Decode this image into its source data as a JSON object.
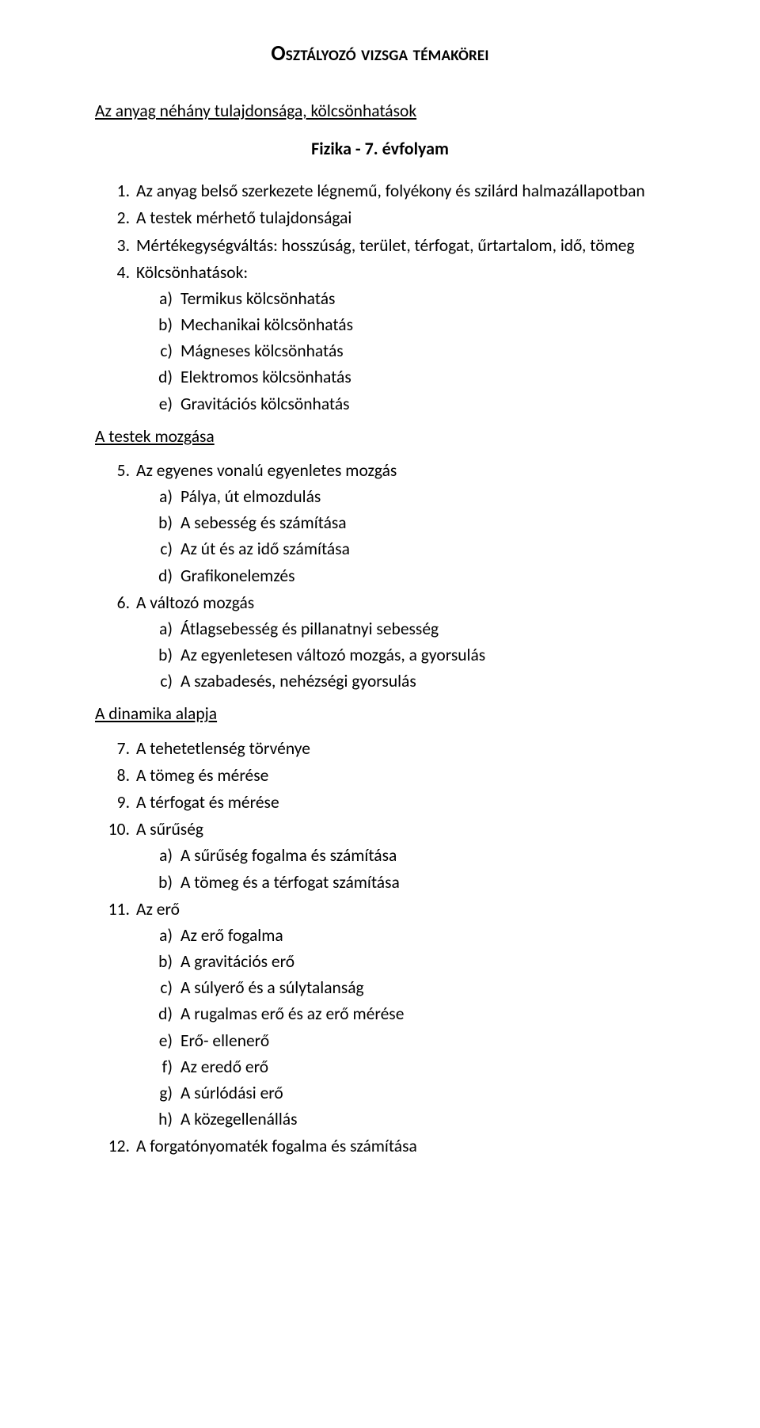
{
  "title": "Osztályozó vizsga témakörei",
  "subtitle": "Fizika - 7. évfolyam",
  "sections": [
    {
      "heading": "Az anyag néhány tulajdonsága, kölcsönhatások",
      "items": [
        {
          "num": "1.",
          "text": "Az anyag belső szerkezete légnemű, folyékony és szilárd halmazállapotban"
        },
        {
          "num": "2.",
          "text": "A testek mérhető tulajdonságai"
        },
        {
          "num": "3.",
          "text": "Mértékegységváltás: hosszúság, terület, térfogat, űrtartalom, idő, tömeg"
        },
        {
          "num": "4.",
          "text": "Kölcsönhatások:",
          "sub": [
            {
              "lett": "a)",
              "text": "Termikus kölcsönhatás"
            },
            {
              "lett": "b)",
              "text": "Mechanikai kölcsönhatás"
            },
            {
              "lett": "c)",
              "text": "Mágneses kölcsönhatás"
            },
            {
              "lett": "d)",
              "text": "Elektromos kölcsönhatás"
            },
            {
              "lett": "e)",
              "text": "Gravitációs kölcsönhatás"
            }
          ]
        }
      ]
    },
    {
      "heading": "A testek mozgása",
      "items": [
        {
          "num": "5.",
          "text": "Az egyenes vonalú egyenletes mozgás",
          "sub": [
            {
              "lett": "a)",
              "text": "Pálya, út elmozdulás"
            },
            {
              "lett": "b)",
              "text": "A sebesség és számítása"
            },
            {
              "lett": "c)",
              "text": "Az út és az idő számítása"
            },
            {
              "lett": "d)",
              "text": "Grafikonelemzés"
            }
          ]
        },
        {
          "num": "6.",
          "text": "A változó mozgás",
          "sub": [
            {
              "lett": "a)",
              "text": "Átlagsebesség és pillanatnyi sebesség"
            },
            {
              "lett": "b)",
              "text": "Az egyenletesen változó mozgás, a gyorsulás"
            },
            {
              "lett": "c)",
              "text": "A szabadesés, nehézségi gyorsulás"
            }
          ]
        }
      ]
    },
    {
      "heading": "A dinamika alapja",
      "items": [
        {
          "num": "7.",
          "text": "A tehetetlenség törvénye"
        },
        {
          "num": "8.",
          "text": "A tömeg és mérése"
        },
        {
          "num": "9.",
          "text": "A térfogat és mérése"
        },
        {
          "num": "10.",
          "text": "A sűrűség",
          "sub": [
            {
              "lett": "a)",
              "text": "A sűrűség fogalma és számítása"
            },
            {
              "lett": "b)",
              "text": "A tömeg és a térfogat számítása"
            }
          ]
        },
        {
          "num": "11.",
          "text": "Az erő",
          "sub": [
            {
              "lett": "a)",
              "text": "Az erő fogalma"
            },
            {
              "lett": "b)",
              "text": "A gravitációs erő"
            },
            {
              "lett": "c)",
              "text": "A súlyerő és a súlytalanság"
            },
            {
              "lett": "d)",
              "text": "A rugalmas erő és az erő mérése"
            },
            {
              "lett": "e)",
              "text": "Erő- ellenerő"
            },
            {
              "lett": "f)",
              "text": "Az eredő erő"
            },
            {
              "lett": "g)",
              "text": "A súrlódási erő"
            },
            {
              "lett": "h)",
              "text": "A közegellenállás"
            }
          ]
        },
        {
          "num": "12.",
          "text": "A forgatónyomaték fogalma és számítása"
        }
      ]
    }
  ]
}
